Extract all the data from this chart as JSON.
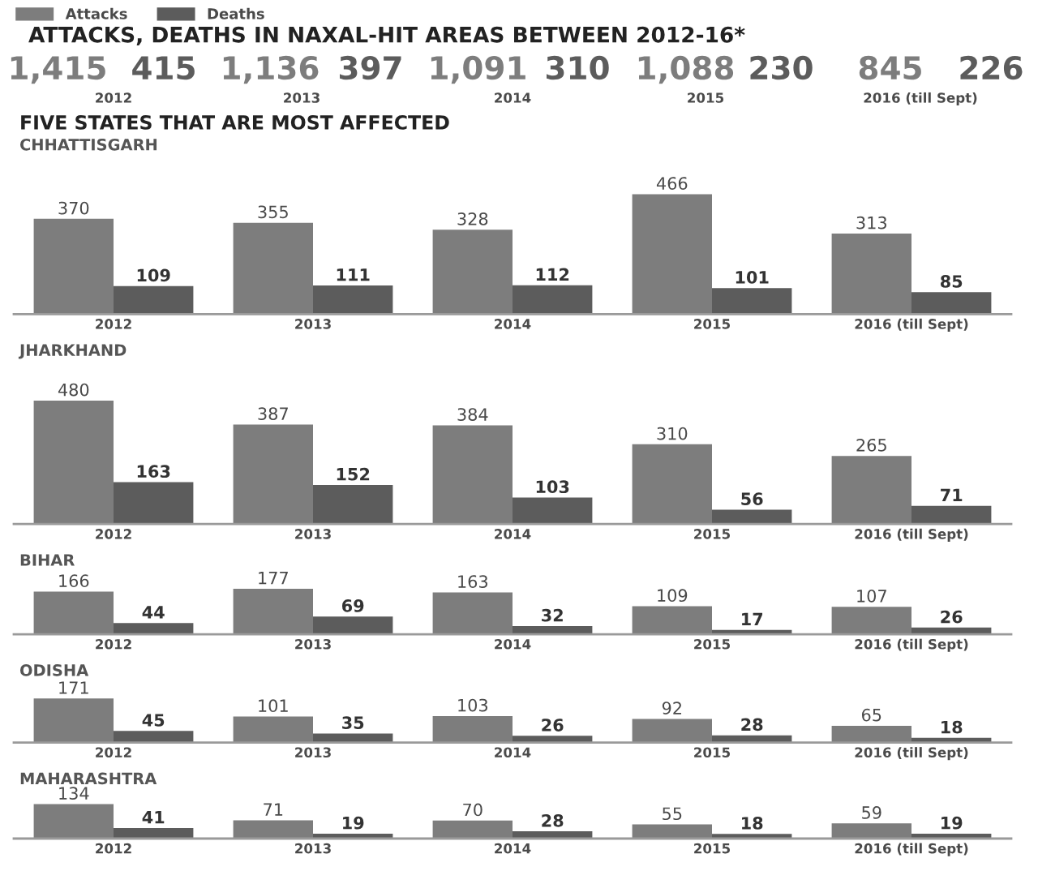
{
  "chart_data": [
    {
      "type": "other",
      "title": "ATTACKS, DEATHS IN NAXAL-HIT AREAS BETWEEN 2012-16*",
      "legend": "top left",
      "categories": [
        "2012",
        "2013",
        "2014",
        "2015",
        "2016 (till Sept)"
      ],
      "series": [
        {
          "name": "Attacks",
          "color": "#7d7d7d",
          "values": [
            1415,
            1136,
            1091,
            1088,
            845
          ],
          "value_labels": [
            "1,415",
            "1,136",
            "1,091",
            "1,088",
            "845"
          ]
        },
        {
          "name": "Deaths",
          "color": "#5c5c5c",
          "values": [
            415,
            397,
            310,
            230,
            226
          ],
          "value_labels": [
            "415",
            "397",
            "310",
            "230",
            "226"
          ]
        }
      ]
    },
    {
      "type": "bar",
      "subtitle": "FIVE STATES THAT ARE MOST AFFECTED",
      "title": "CHHATTISGARH",
      "categories": [
        "2012",
        "2013",
        "2014",
        "2015",
        "2016 (till Sept)"
      ],
      "series": [
        {
          "color": "#7d7d7d",
          "values": [
            370,
            355,
            328,
            466,
            313
          ]
        },
        {
          "color": "#5c5c5c",
          "values": [
            109,
            111,
            112,
            101,
            85
          ]
        }
      ],
      "data_labels": true,
      "tick_labels": "x"
    },
    {
      "type": "bar",
      "title": "JHARKHAND",
      "categories": [
        "2012",
        "2013",
        "2014",
        "2015",
        "2016 (till Sept)"
      ],
      "series": [
        {
          "color": "#7d7d7d",
          "values": [
            480,
            387,
            384,
            310,
            265
          ]
        },
        {
          "color": "#5c5c5c",
          "values": [
            163,
            152,
            103,
            56,
            71
          ]
        }
      ],
      "data_labels": true,
      "tick_labels": "x"
    },
    {
      "type": "bar",
      "title": "BIHAR",
      "categories": [
        "2012",
        "2013",
        "2014",
        "2015",
        "2016 (till Sept)"
      ],
      "series": [
        {
          "color": "#7d7d7d",
          "values": [
            166,
            177,
            163,
            109,
            107
          ]
        },
        {
          "color": "#5c5c5c",
          "values": [
            44,
            69,
            32,
            17,
            26
          ]
        }
      ],
      "data_labels": true,
      "tick_labels": "x"
    },
    {
      "type": "bar",
      "title": "ODISHA",
      "categories": [
        "2012",
        "2013",
        "2014",
        "2015",
        "2016 (till Sept)"
      ],
      "series": [
        {
          "color": "#7d7d7d",
          "values": [
            171,
            101,
            103,
            92,
            65
          ]
        },
        {
          "color": "#5c5c5c",
          "values": [
            45,
            35,
            26,
            28,
            18
          ]
        }
      ],
      "data_labels": true,
      "tick_labels": "x"
    },
    {
      "type": "bar",
      "title": "MAHARASHTRA",
      "categories": [
        "2012",
        "2013",
        "2014",
        "2015",
        "2016 (till Sept)"
      ],
      "series": [
        {
          "color": "#7d7d7d",
          "values": [
            134,
            71,
            70,
            55,
            59
          ]
        },
        {
          "color": "#5c5c5c",
          "values": [
            41,
            19,
            28,
            18,
            19
          ]
        }
      ],
      "data_labels": true,
      "tick_labels": "x"
    }
  ]
}
